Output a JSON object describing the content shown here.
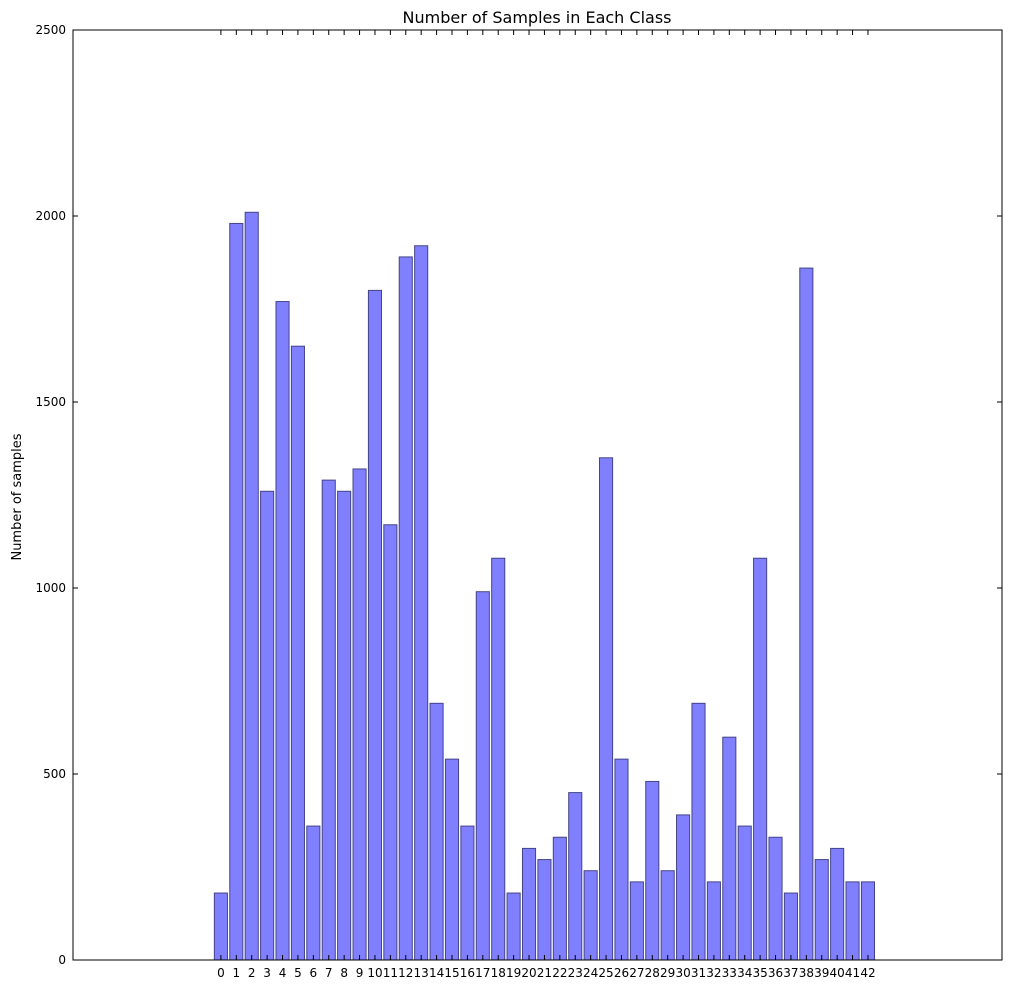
{
  "chart_data": {
    "type": "bar",
    "title": "Number of Samples in Each Class",
    "xlabel": "",
    "ylabel": "Number of samples",
    "categories": [
      "0",
      "1",
      "2",
      "3",
      "4",
      "5",
      "6",
      "7",
      "8",
      "9",
      "10",
      "11",
      "12",
      "13",
      "14",
      "15",
      "16",
      "17",
      "18",
      "19",
      "20",
      "21",
      "22",
      "23",
      "24",
      "25",
      "26",
      "27",
      "28",
      "29",
      "30",
      "31",
      "32",
      "33",
      "34",
      "35",
      "36",
      "37",
      "38",
      "39",
      "40",
      "41",
      "42"
    ],
    "values": [
      180,
      1980,
      2010,
      1260,
      1770,
      1650,
      360,
      1290,
      1260,
      1320,
      1800,
      1170,
      1890,
      1920,
      690,
      540,
      360,
      990,
      1080,
      180,
      300,
      270,
      330,
      450,
      240,
      1350,
      540,
      210,
      480,
      240,
      390,
      690,
      210,
      599,
      360,
      1080,
      330,
      180,
      1860,
      270,
      300,
      210,
      210
    ],
    "xlim": [
      -9.6,
      50.7
    ],
    "ylim": [
      0,
      2500
    ],
    "yticks": [
      0,
      500,
      1000,
      1500,
      2000,
      2500
    ],
    "ytick_labels": [
      "0",
      "500",
      "1000",
      "1500",
      "2000",
      "2500"
    ],
    "grid": false,
    "colors": {
      "bar_fill": "#8080ff",
      "bar_edge": "#444488"
    }
  }
}
